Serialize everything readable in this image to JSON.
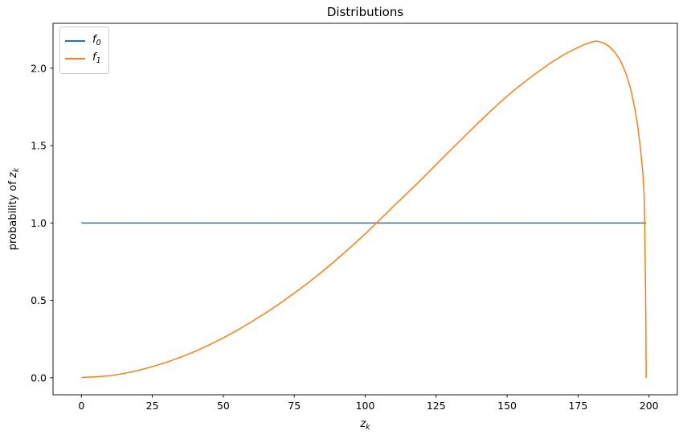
{
  "chart_data": {
    "type": "line",
    "title": "Distributions",
    "xlabel": {
      "pre": "",
      "var": "z",
      "sub": "k"
    },
    "ylabel": {
      "pre": "probability of ",
      "var": "z",
      "sub": "k"
    },
    "xlim": [
      -10,
      210
    ],
    "ylim": [
      -0.11,
      2.29
    ],
    "x_ticks": {
      "values": [
        0,
        25,
        50,
        75,
        100,
        125,
        150,
        175,
        200
      ],
      "labels": [
        "0",
        "25",
        "50",
        "75",
        "100",
        "125",
        "150",
        "175",
        "200"
      ]
    },
    "y_ticks": {
      "values": [
        0.0,
        0.5,
        1.0,
        1.5,
        2.0
      ],
      "labels": [
        "0.0",
        "0.5",
        "1.0",
        "1.5",
        "2.0"
      ]
    },
    "grid": false,
    "legend_position": "upper left",
    "axis_color": "#000000",
    "series": [
      {
        "name": "f0",
        "label_base": "f",
        "label_sub": "0",
        "color": "#1f77b4",
        "points": [
          [
            0,
            1.0
          ],
          [
            199,
            1.0
          ]
        ]
      },
      {
        "name": "f1",
        "label_base": "f",
        "label_sub": "1",
        "color": "#ff7f0e",
        "points": [
          [
            0,
            0.002
          ],
          [
            5,
            0.006
          ],
          [
            10,
            0.013
          ],
          [
            15,
            0.028
          ],
          [
            20,
            0.047
          ],
          [
            25,
            0.072
          ],
          [
            30,
            0.1
          ],
          [
            35,
            0.133
          ],
          [
            40,
            0.17
          ],
          [
            45,
            0.212
          ],
          [
            50,
            0.258
          ],
          [
            55,
            0.308
          ],
          [
            60,
            0.362
          ],
          [
            65,
            0.42
          ],
          [
            70,
            0.481
          ],
          [
            75,
            0.547
          ],
          [
            80,
            0.615
          ],
          [
            85,
            0.688
          ],
          [
            90,
            0.766
          ],
          [
            95,
            0.846
          ],
          [
            100,
            0.93
          ],
          [
            105,
            1.018
          ],
          [
            110,
            1.109
          ],
          [
            115,
            1.196
          ],
          [
            120,
            1.285
          ],
          [
            125,
            1.378
          ],
          [
            130,
            1.47
          ],
          [
            135,
            1.56
          ],
          [
            140,
            1.65
          ],
          [
            145,
            1.737
          ],
          [
            150,
            1.82
          ],
          [
            155,
            1.895
          ],
          [
            160,
            1.965
          ],
          [
            165,
            2.03
          ],
          [
            170,
            2.088
          ],
          [
            174,
            2.125
          ],
          [
            177,
            2.152
          ],
          [
            180,
            2.17
          ],
          [
            181,
            2.175
          ],
          [
            182,
            2.174
          ],
          [
            184,
            2.163
          ],
          [
            186,
            2.141
          ],
          [
            188,
            2.103
          ],
          [
            190,
            2.047
          ],
          [
            192,
            1.96
          ],
          [
            193.5,
            1.868
          ],
          [
            195,
            1.74
          ],
          [
            196,
            1.63
          ],
          [
            197,
            1.48
          ],
          [
            197.8,
            1.33
          ],
          [
            198.3,
            1.18
          ],
          [
            198.7,
            0.7
          ],
          [
            198.9,
            0.35
          ],
          [
            199,
            0.0
          ]
        ]
      }
    ]
  }
}
